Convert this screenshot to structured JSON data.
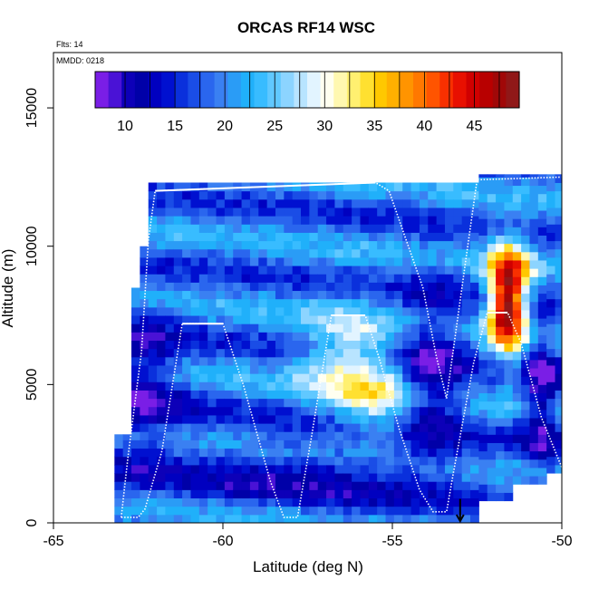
{
  "chart_data": {
    "type": "heatmap",
    "title": "ORCAS RF14 WSC",
    "xlabel": "Latitude (deg N)",
    "ylabel": "Altitude (m)",
    "xlim": [
      -65,
      -50
    ],
    "ylim": [
      0,
      17000
    ],
    "x_ticks": [
      -65,
      -60,
      -55,
      -50
    ],
    "x_tick_labels": [
      "-65",
      "-60",
      "-55",
      "-50"
    ],
    "y_ticks": [
      0,
      5000,
      10000,
      15000
    ],
    "y_tick_labels": [
      "0",
      "5000",
      "10000",
      "15000"
    ],
    "flights_label": "Flts: 14",
    "date_label": "MMDD: 0218",
    "colorbar": {
      "range": [
        7,
        49.5
      ],
      "ticks": [
        10,
        15,
        20,
        25,
        30,
        35,
        40,
        45
      ],
      "tick_labels": [
        "10",
        "15",
        "20",
        "25",
        "30",
        "35",
        "40",
        "45"
      ],
      "colors": [
        "#7a1ee6",
        "#4a12d6",
        "#0d00b8",
        "#0000a8",
        "#0000c0",
        "#0010d0",
        "#0a30dc",
        "#1a4de6",
        "#2a66ee",
        "#3a80f2",
        "#2a9cf6",
        "#20b0fa",
        "#38bcff",
        "#60c8ff",
        "#8cd4ff",
        "#b8e4ff",
        "#e2f4ff",
        "#fffff0",
        "#fff8b0",
        "#fff070",
        "#ffe030",
        "#ffc800",
        "#ffb000",
        "#ff9400",
        "#ff7800",
        "#ff5400",
        "#f83000",
        "#e81000",
        "#d00000",
        "#b80000",
        "#a00808",
        "#901818"
      ]
    },
    "flight_track": [
      [
        -63.0,
        200
      ],
      [
        -62.9,
        200
      ],
      [
        -62.5,
        200
      ],
      [
        -62.3,
        500
      ],
      [
        -61.8,
        2600
      ],
      [
        -61.2,
        7200
      ],
      [
        -60.0,
        7200
      ],
      [
        -59.4,
        5000
      ],
      [
        -58.6,
        1500
      ],
      [
        -58.2,
        200
      ],
      [
        -57.8,
        200
      ],
      [
        -57.4,
        3000
      ],
      [
        -56.8,
        7500
      ],
      [
        -55.8,
        7500
      ],
      [
        -55.4,
        6000
      ],
      [
        -54.8,
        3400
      ],
      [
        -54.2,
        1200
      ],
      [
        -53.8,
        400
      ],
      [
        -53.4,
        400
      ],
      [
        -53.2,
        1800
      ],
      [
        -52.6,
        5800
      ],
      [
        -52.2,
        7600
      ],
      [
        -51.6,
        7600
      ],
      [
        -51.2,
        6500
      ],
      [
        -50.6,
        3800
      ],
      [
        -50.0,
        2000
      ]
    ],
    "flight_track_upper": [
      [
        -63.0,
        200
      ],
      [
        -62.8,
        2400
      ],
      [
        -62.4,
        6200
      ],
      [
        -62.2,
        10200
      ],
      [
        -62.0,
        12000
      ],
      [
        -55.5,
        12300
      ],
      [
        -55.1,
        12000
      ],
      [
        -54.7,
        10600
      ],
      [
        -54.1,
        8500
      ],
      [
        -53.7,
        6000
      ],
      [
        -53.4,
        4500
      ],
      [
        -52.8,
        9800
      ],
      [
        -52.5,
        12400
      ],
      [
        -50.0,
        12500
      ]
    ],
    "arrow_marker": {
      "lat": -53.0,
      "alt": 800
    }
  }
}
